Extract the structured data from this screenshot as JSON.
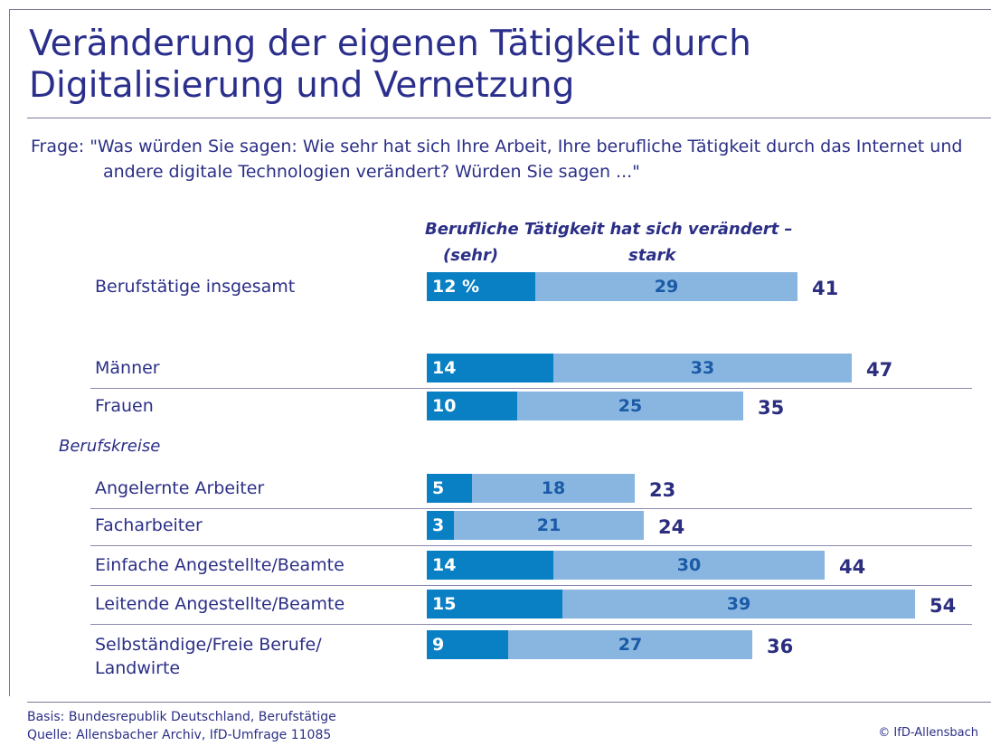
{
  "chart_data": {
    "type": "stacked-bar-horizontal",
    "title": "Veränderung der eigenen Tätigkeit durch Digitalisierung und Vernetzung",
    "question": "Frage: \"Was würden Sie sagen: Wie sehr hat sich Ihre Arbeit, Ihre berufliche Tätigkeit durch das Internet und andere digitale Technologien verändert? Würden Sie sagen ...\"",
    "legend_title": "Berufliche Tätigkeit hat sich verändert –",
    "group_label": "Berufskreise",
    "categories": [
      "Berufstätige insgesamt",
      "Männer",
      "Frauen",
      "Angelernte Arbeiter",
      "Facharbeiter",
      "Einfache Angestellte/Beamte",
      "Leitende Angestellte/Beamte",
      "Selbständige/Freie Berufe/ Landwirte"
    ],
    "series": [
      {
        "name": "(sehr)",
        "color": "#0a80c4",
        "values": [
          12,
          14,
          10,
          5,
          3,
          14,
          15,
          9
        ],
        "value_labels": [
          "12 %",
          "14",
          "10",
          "5",
          "3",
          "14",
          "15",
          "9"
        ]
      },
      {
        "name": "stark",
        "color": "#88b6e0",
        "values": [
          29,
          33,
          25,
          18,
          21,
          30,
          39,
          27
        ]
      }
    ],
    "totals": [
      41,
      47,
      35,
      23,
      24,
      44,
      54,
      36
    ],
    "footer": {
      "basis": "Basis: Bundesrepublik Deutschland, Berufstätige",
      "source": "Quelle: Allensbacher Archiv, IfD-Umfrage 11085",
      "copyright": "© IfD-Allensbach"
    }
  }
}
